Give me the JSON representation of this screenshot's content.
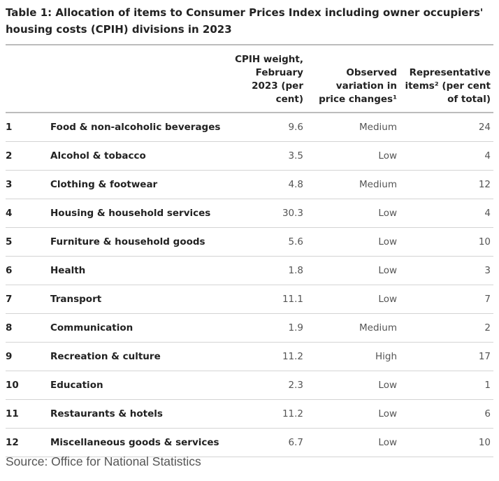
{
  "title": "Table 1: Allocation of items to Consumer Prices Index including owner occupiers' housing costs (CPIH) divisions in 2023",
  "columns": {
    "number": "",
    "division": "",
    "weight": "CPIH weight, February 2023 (per cent)",
    "variation": "Observed variation in price changes¹",
    "representative": "Representative items² (per cent of total)"
  },
  "rows": [
    {
      "number": "1",
      "division": "Food & non-alcoholic beverages",
      "weight": "9.6",
      "variation": "Medium",
      "representative": "24"
    },
    {
      "number": "2",
      "division": "Alcohol & tobacco",
      "weight": "3.5",
      "variation": "Low",
      "representative": "4"
    },
    {
      "number": "3",
      "division": "Clothing & footwear",
      "weight": "4.8",
      "variation": "Medium",
      "representative": "12"
    },
    {
      "number": "4",
      "division": "Housing & household services",
      "weight": "30.3",
      "variation": "Low",
      "representative": "4"
    },
    {
      "number": "5",
      "division": "Furniture & household goods",
      "weight": "5.6",
      "variation": "Low",
      "representative": "10"
    },
    {
      "number": "6",
      "division": "Health",
      "weight": "1.8",
      "variation": "Low",
      "representative": "3"
    },
    {
      "number": "7",
      "division": "Transport",
      "weight": "11.1",
      "variation": "Low",
      "representative": "7"
    },
    {
      "number": "8",
      "division": "Communication",
      "weight": "1.9",
      "variation": "Medium",
      "representative": "2"
    },
    {
      "number": "9",
      "division": "Recreation & culture",
      "weight": "11.2",
      "variation": "High",
      "representative": "17"
    },
    {
      "number": "10",
      "division": "Education",
      "weight": "2.3",
      "variation": "Low",
      "representative": "1"
    },
    {
      "number": "11",
      "division": "Restaurants & hotels",
      "weight": "11.2",
      "variation": "Low",
      "representative": "6"
    },
    {
      "number": "12",
      "division": "Miscellaneous goods & services",
      "weight": "6.7",
      "variation": "Low",
      "representative": "10"
    }
  ],
  "source": "Source: Office for National Statistics"
}
